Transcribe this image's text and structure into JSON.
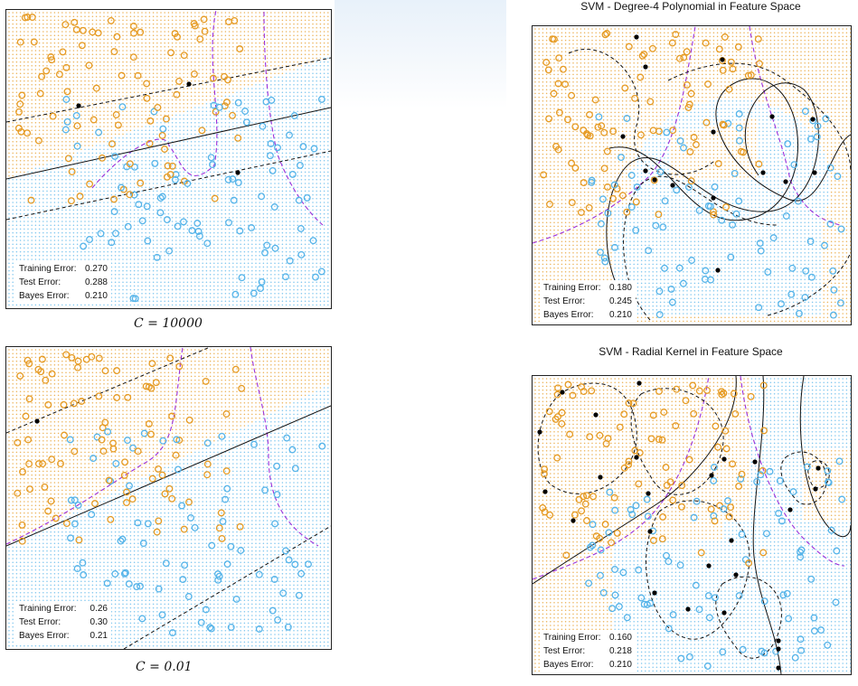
{
  "colors": {
    "orange": "#e69b24",
    "blue": "#56b4e9",
    "bayes": "#9b30d9",
    "boundary": "#111111",
    "support": "#000000"
  },
  "panels": [
    {
      "id": "linear-c10000",
      "title": "",
      "caption": "C = 10000",
      "errors": [
        {
          "label": "Training Error:",
          "value": "0.270"
        },
        {
          "label": "Test Error:",
          "value": "0.288"
        },
        {
          "label": "Bayes Error:",
          "value": "0.210"
        }
      ]
    },
    {
      "id": "linear-c001",
      "title": "",
      "caption": "C = 0.01",
      "errors": [
        {
          "label": "Training Error:",
          "value": "0.26"
        },
        {
          "label": "Test Error:",
          "value": "0.30"
        },
        {
          "label": "Bayes Error:",
          "value": "0.21"
        }
      ]
    },
    {
      "id": "poly-degree4",
      "title": "SVM - Degree-4 Polynomial in Feature Space",
      "caption": "",
      "errors": [
        {
          "label": "Training Error:",
          "value": "0.180"
        },
        {
          "label": "Test Error:",
          "value": "0.245"
        },
        {
          "label": "Bayes Error:",
          "value": "0.210"
        }
      ]
    },
    {
      "id": "radial",
      "title": "SVM - Radial Kernel in Feature Space",
      "caption": "",
      "errors": [
        {
          "label": "Training Error:",
          "value": "0.160"
        },
        {
          "label": "Test Error:",
          "value": "0.218"
        },
        {
          "label": "Bayes Error:",
          "value": "0.210"
        }
      ]
    }
  ]
}
